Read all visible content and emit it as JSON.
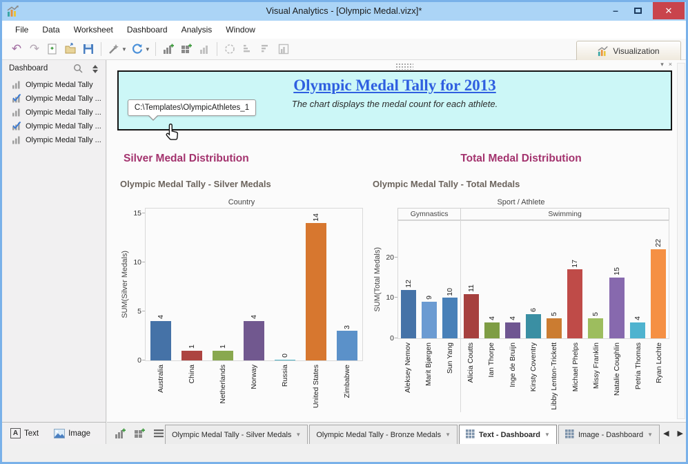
{
  "window": {
    "title": "Visual Analytics - [Olympic Medal.vizx]*"
  },
  "menu": {
    "items": [
      "File",
      "Data",
      "Worksheet",
      "Dashboard",
      "Analysis",
      "Window"
    ]
  },
  "toolbar": {
    "icons": [
      "undo",
      "redo",
      "new-workbook",
      "open",
      "save",
      "format-painter",
      "refresh",
      "new-worksheet",
      "new-dashboard",
      "duplicate-sheet",
      "clear",
      "sort-ascending",
      "sort-descending",
      "swap-axes"
    ],
    "visualization_label": "Visualization"
  },
  "sidebar": {
    "header": "Dashboard",
    "items": [
      {
        "label": "Olympic Medal Tally",
        "checked": false
      },
      {
        "label": "Olympic Medal Tally ...",
        "checked": true
      },
      {
        "label": "Olympic Medal Tally ...",
        "checked": false
      },
      {
        "label": "Olympic Medal Tally ...",
        "checked": true
      },
      {
        "label": "Olympic Medal Tally ...",
        "checked": false
      }
    ],
    "footer": {
      "text_button": "Text",
      "image_button": "Image"
    }
  },
  "banner": {
    "title": "Olympic Medal Tally for 2013",
    "subtitle": "The chart displays the medal count for each athlete.",
    "tooltip": "C:\\Templates\\OlympicAthletes_1",
    "menu_caret": "▾",
    "close_glyph": "×"
  },
  "sections": {
    "silver": {
      "heading": "Silver Medal Distribution",
      "worksheet_title": "Olympic Medal Tally - Silver Medals"
    },
    "total": {
      "heading": "Total Medal Distribution",
      "worksheet_title": "Olympic Medal Tally - Total Medals"
    }
  },
  "chart_data": [
    {
      "type": "bar",
      "title": "Olympic Medal Tally - Silver Medals",
      "xlabel": "Country",
      "ylabel": "SUM(Silver Medals)",
      "categories": [
        "Australia",
        "China",
        "Netherlands",
        "Norway",
        "Russia",
        "United States",
        "Zimbabwe"
      ],
      "values": [
        4,
        1,
        1,
        4,
        0,
        14,
        3
      ],
      "bar_colors": [
        "#4572a7",
        "#ad4441",
        "#89a84f",
        "#71588f",
        "#4ab0c4",
        "#d7772f",
        "#5b91c9"
      ],
      "yticks": [
        0,
        5,
        10,
        15
      ],
      "ylim": [
        0,
        15.5
      ],
      "grid": false,
      "legend": "none"
    },
    {
      "type": "bar",
      "title": "Olympic Medal Tally - Total Medals",
      "xlabel": "Sport / Athlete",
      "ylabel": "SUM(Total Medals)",
      "groups": [
        {
          "label": "Gymnastics",
          "count": 3
        },
        {
          "label": "Swimming",
          "count": 10
        }
      ],
      "categories": [
        "Aleksey Nemov",
        "Marit Bjørgen",
        "Sun Yang",
        "Alicia Coutts",
        "Ian Thorpe",
        "Inge de Bruijn",
        "Kirsty Coventry",
        "Libby Lenton-Trickett",
        "Michael Phelps",
        "Missy Franklin",
        "Natalie Coughlin",
        "Petria Thomas",
        "Ryan Lochte"
      ],
      "values": [
        12,
        9,
        10,
        11,
        4,
        4,
        6,
        5,
        17,
        5,
        15,
        4,
        22
      ],
      "bar_colors": [
        "#4572a7",
        "#6b9bd2",
        "#4880b8",
        "#a6403e",
        "#7e9d44",
        "#6f5691",
        "#3a8fa3",
        "#cb7c31",
        "#bf4b48",
        "#9dbd5e",
        "#8769ae",
        "#4fb3cf",
        "#f59044"
      ],
      "yticks": [
        0,
        10,
        20
      ],
      "ylim": [
        0,
        29
      ],
      "grid": false,
      "legend": "none"
    }
  ],
  "tabbar": {
    "tabs": [
      {
        "label": "Olympic Medal Tally - Silver Medals",
        "active": false,
        "icon": "chart"
      },
      {
        "label": "Olympic Medal Tally - Bronze Medals",
        "active": false,
        "icon": "chart"
      },
      {
        "label": "Text - Dashboard",
        "active": true,
        "icon": "grid"
      },
      {
        "label": "Image - Dashboard",
        "active": false,
        "icon": "grid"
      }
    ],
    "nav_prev": "◀",
    "nav_next": "▶"
  },
  "colors": {
    "titlebar": "#abd4f6",
    "banner_bg": "#ccf7f7",
    "banner_title": "#2f5fe0",
    "section_heading": "#a3336e",
    "worksheet_title": "#6b635c",
    "close_button": "#c9444c"
  }
}
